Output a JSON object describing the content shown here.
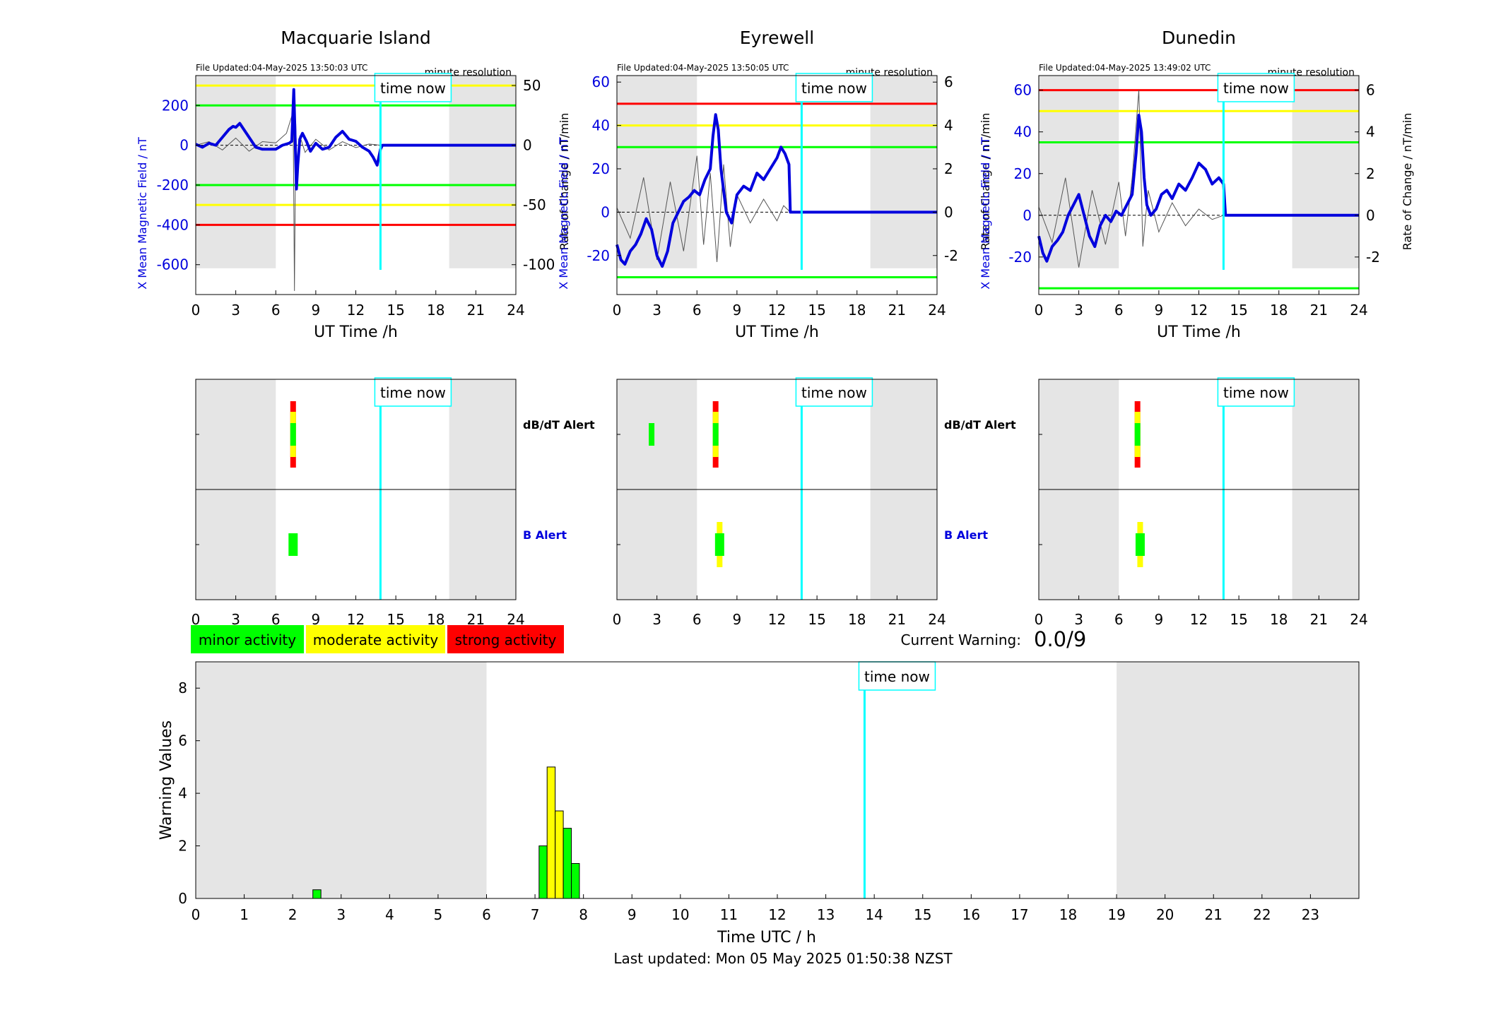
{
  "figure": {
    "time_now_label": "time now",
    "current_warning_label": "Current Warning:",
    "current_warning_value": "0.0/9",
    "last_updated": "Last updated: Mon 05 May 2025 01:50:38 NZST",
    "legend": [
      {
        "label": "minor activity",
        "color": "#00ff00"
      },
      {
        "label": "moderate activity",
        "color": "#ffff00"
      },
      {
        "label": "strong activity",
        "color": "#ff0000"
      }
    ],
    "colors": {
      "field": "#0000dd",
      "now_line": "#00ffff",
      "shade": "#e5e5e5",
      "green": "#00ff00",
      "yellow": "#ffff00",
      "red": "#ff0000"
    },
    "alert_rows": {
      "dbdt": "dB/dT Alert",
      "b": "B Alert"
    }
  },
  "chart_data": [
    {
      "type": "line",
      "title": "Macquarie Island",
      "file_updated": "File Updated:04-May-2025 13:50:03 UTC",
      "resolution": "minute resolution",
      "xlabel": "UT Time /h",
      "ylabel_left": "X Mean Magnetic Field / nT",
      "ylabel_right": "Rate of Change / nT/min",
      "xlim": [
        0,
        24
      ],
      "x_ticks": [
        0,
        3,
        6,
        9,
        12,
        15,
        18,
        21,
        24
      ],
      "ylim_left": [
        -750,
        350
      ],
      "y_ticks_left": [
        200,
        0,
        -200,
        -400,
        -600
      ],
      "ylim_right": [
        -125,
        58.3
      ],
      "y_ticks_right": [
        50,
        0,
        -50,
        -100
      ],
      "night_shading": [
        [
          0,
          6
        ],
        [
          19,
          24
        ]
      ],
      "time_now": 13.85,
      "thresholds": [
        {
          "value": 300,
          "color": "yellow"
        },
        {
          "value": 200,
          "color": "green"
        },
        {
          "value": -200,
          "color": "green"
        },
        {
          "value": -300,
          "color": "yellow"
        },
        {
          "value": -400,
          "color": "red"
        }
      ],
      "field_series": {
        "x": [
          0,
          0.5,
          1,
          1.5,
          2,
          2.5,
          2.8,
          3,
          3.3,
          3.6,
          4,
          4.5,
          5,
          5.5,
          6,
          6.5,
          7,
          7.2,
          7.35,
          7.45,
          7.55,
          7.65,
          7.8,
          8,
          8.3,
          8.6,
          9,
          9.5,
          10,
          10.5,
          11,
          11.5,
          12,
          12.5,
          13,
          13.3,
          13.6,
          13.85,
          14,
          24
        ],
        "y": [
          5,
          -10,
          10,
          0,
          40,
          80,
          95,
          90,
          110,
          80,
          40,
          -10,
          -20,
          -20,
          -20,
          0,
          10,
          20,
          280,
          40,
          -220,
          -100,
          30,
          60,
          20,
          -30,
          10,
          -20,
          -10,
          40,
          70,
          30,
          20,
          -10,
          -30,
          -60,
          -100,
          -20,
          0,
          0
        ]
      },
      "rate_series": {
        "x": [
          0,
          1,
          2,
          3,
          4,
          5,
          6,
          6.8,
          7.3,
          7.4,
          7.5,
          7.6,
          7.8,
          8.2,
          9,
          10,
          11,
          12,
          13,
          13.85
        ],
        "y": [
          0,
          3,
          -4,
          6,
          -5,
          3,
          2,
          10,
          28,
          -122,
          18,
          -30,
          8,
          -6,
          5,
          -4,
          3,
          -2,
          1,
          0
        ]
      }
    },
    {
      "type": "line",
      "title": "Eyrewell",
      "file_updated": "File Updated:04-May-2025 13:50:05 UTC",
      "resolution": "minute resolution",
      "xlabel": "UT Time /h",
      "ylabel_left": "X Mean Magnetic Field / nT",
      "ylabel_right": "Rate of Change / nT/min",
      "xlim": [
        0,
        24
      ],
      "x_ticks": [
        0,
        3,
        6,
        9,
        12,
        15,
        18,
        21,
        24
      ],
      "ylim_left": [
        -38,
        63
      ],
      "y_ticks_left": [
        60,
        40,
        20,
        0,
        -20
      ],
      "ylim_right": [
        -3.8,
        6.3
      ],
      "y_ticks_right": [
        6,
        4,
        2,
        0,
        -2
      ],
      "night_shading": [
        [
          0,
          6
        ],
        [
          19,
          24
        ]
      ],
      "time_now": 13.85,
      "thresholds": [
        {
          "value": 50,
          "color": "red"
        },
        {
          "value": 40,
          "color": "yellow"
        },
        {
          "value": 30,
          "color": "green"
        },
        {
          "value": -30,
          "color": "green"
        }
      ],
      "field_series": {
        "x": [
          0,
          0.3,
          0.6,
          1,
          1.4,
          1.8,
          2.2,
          2.6,
          3,
          3.4,
          3.8,
          4.2,
          4.6,
          5,
          5.4,
          5.8,
          6.2,
          6.6,
          7,
          7.2,
          7.4,
          7.6,
          7.8,
          8,
          8.2,
          8.6,
          9,
          9.5,
          10,
          10.5,
          11,
          11.5,
          12,
          12.3,
          12.6,
          12.9,
          13,
          24
        ],
        "y": [
          -15,
          -22,
          -24,
          -18,
          -15,
          -10,
          -3,
          -8,
          -20,
          -25,
          -18,
          -5,
          0,
          5,
          7,
          10,
          8,
          15,
          20,
          35,
          45,
          38,
          20,
          10,
          0,
          -5,
          8,
          12,
          10,
          18,
          15,
          20,
          25,
          30,
          27,
          22,
          0,
          0
        ]
      },
      "rate_series": {
        "x": [
          0,
          1,
          2,
          3,
          4,
          5,
          6,
          6.5,
          7,
          7.5,
          8,
          8.5,
          9,
          10,
          11,
          12,
          12.5,
          13
        ],
        "y": [
          0.2,
          -1.2,
          1.6,
          -2.2,
          1.4,
          -1.8,
          2.6,
          -1.5,
          1.8,
          -2.3,
          2.2,
          -1.6,
          0.8,
          -0.5,
          0.6,
          -0.4,
          0.3,
          0
        ]
      }
    },
    {
      "type": "line",
      "title": "Dunedin",
      "file_updated": "File Updated:04-May-2025 13:49:02 UTC",
      "resolution": "minute resolution",
      "xlabel": "UT Time /h",
      "ylabel_left": "X Mean Magnetic Field / nT",
      "ylabel_right": "Rate of Change / nT/min",
      "xlim": [
        0,
        24
      ],
      "x_ticks": [
        0,
        3,
        6,
        9,
        12,
        15,
        18,
        21,
        24
      ],
      "ylim_left": [
        -38,
        67
      ],
      "y_ticks_left": [
        60,
        40,
        20,
        0,
        -20
      ],
      "ylim_right": [
        -3.8,
        6.7
      ],
      "y_ticks_right": [
        6,
        4,
        2,
        0,
        -2
      ],
      "night_shading": [
        [
          0,
          6
        ],
        [
          19,
          24
        ]
      ],
      "time_now": 13.85,
      "thresholds": [
        {
          "value": 60,
          "color": "red"
        },
        {
          "value": 50,
          "color": "yellow"
        },
        {
          "value": 35,
          "color": "green"
        },
        {
          "value": -35,
          "color": "green"
        }
      ],
      "field_series": {
        "x": [
          0,
          0.3,
          0.6,
          1,
          1.4,
          1.8,
          2.2,
          2.6,
          3,
          3.4,
          3.8,
          4.2,
          4.6,
          5,
          5.4,
          5.8,
          6.2,
          6.6,
          7,
          7.3,
          7.5,
          7.7,
          7.9,
          8.1,
          8.4,
          8.8,
          9.2,
          9.6,
          10,
          10.5,
          11,
          11.5,
          12,
          12.5,
          13,
          13.5,
          13.85,
          14,
          24
        ],
        "y": [
          -10,
          -18,
          -22,
          -15,
          -12,
          -8,
          0,
          5,
          10,
          0,
          -10,
          -15,
          -5,
          0,
          -3,
          2,
          0,
          5,
          10,
          30,
          48,
          40,
          18,
          5,
          0,
          3,
          10,
          12,
          8,
          15,
          12,
          18,
          25,
          22,
          15,
          18,
          15,
          0,
          0
        ]
      },
      "rate_series": {
        "x": [
          0,
          1,
          2,
          3,
          4,
          5,
          6,
          6.5,
          7,
          7.5,
          7.8,
          8.2,
          9,
          10,
          11,
          12,
          13,
          13.85
        ],
        "y": [
          0.4,
          -1.3,
          1.8,
          -2.5,
          1.2,
          -1.4,
          1.6,
          -1.0,
          1.8,
          6.0,
          -1.5,
          1.2,
          -0.8,
          0.6,
          -0.5,
          0.3,
          -0.2,
          0
        ]
      }
    },
    {
      "type": "heatmap",
      "station": "Macquarie Island",
      "xlim": [
        0,
        24
      ],
      "x_ticks": [
        0,
        3,
        6,
        9,
        12,
        15,
        18,
        21,
        24
      ],
      "night_shading": [
        [
          0,
          6
        ],
        [
          19,
          24
        ]
      ],
      "time_now": 13.85,
      "dbdt_alerts": [
        {
          "x": 7.3,
          "level": "red"
        },
        {
          "x": 7.3,
          "level": "yellow"
        },
        {
          "x": 7.3,
          "level": "green"
        }
      ],
      "b_alerts": [
        {
          "x": 7.3,
          "level": "green"
        }
      ]
    },
    {
      "type": "heatmap",
      "station": "Eyrewell",
      "xlim": [
        0,
        24
      ],
      "x_ticks": [
        0,
        3,
        6,
        9,
        12,
        15,
        18,
        21,
        24
      ],
      "night_shading": [
        [
          0,
          6
        ],
        [
          19,
          24
        ]
      ],
      "time_now": 13.85,
      "dbdt_alerts": [
        {
          "x": 2.6,
          "level": "green"
        },
        {
          "x": 7.4,
          "level": "red"
        },
        {
          "x": 7.4,
          "level": "yellow"
        },
        {
          "x": 7.4,
          "level": "green"
        }
      ],
      "b_alerts": [
        {
          "x": 7.7,
          "level": "yellow"
        },
        {
          "x": 7.7,
          "level": "green"
        }
      ]
    },
    {
      "type": "heatmap",
      "station": "Dunedin",
      "xlim": [
        0,
        24
      ],
      "x_ticks": [
        0,
        3,
        6,
        9,
        12,
        15,
        18,
        21,
        24
      ],
      "night_shading": [
        [
          0,
          6
        ],
        [
          19,
          24
        ]
      ],
      "time_now": 13.85,
      "dbdt_alerts": [
        {
          "x": 7.4,
          "level": "red"
        },
        {
          "x": 7.4,
          "level": "yellow"
        },
        {
          "x": 7.4,
          "level": "green"
        }
      ],
      "b_alerts": [
        {
          "x": 7.6,
          "level": "yellow"
        },
        {
          "x": 7.6,
          "level": "green"
        }
      ]
    },
    {
      "type": "bar",
      "xlabel": "Time UTC / h",
      "ylabel": "Warning Values",
      "xlim": [
        0,
        24
      ],
      "x_ticks": [
        0,
        1,
        2,
        3,
        4,
        5,
        6,
        7,
        8,
        9,
        10,
        11,
        12,
        13,
        14,
        15,
        16,
        17,
        18,
        19,
        20,
        21,
        22,
        23
      ],
      "ylim": [
        0,
        9
      ],
      "y_ticks": [
        0,
        2,
        4,
        6,
        8
      ],
      "night_shading": [
        [
          0,
          6
        ],
        [
          19,
          24
        ]
      ],
      "time_now": 13.8,
      "bar_width": 0.1667,
      "bars": [
        {
          "x": 2.5,
          "value": 0.33,
          "level": "green"
        },
        {
          "x": 7.167,
          "value": 2.0,
          "level": "green"
        },
        {
          "x": 7.333,
          "value": 5.0,
          "level": "yellow"
        },
        {
          "x": 7.5,
          "value": 3.33,
          "level": "yellow"
        },
        {
          "x": 7.667,
          "value": 2.67,
          "level": "green"
        },
        {
          "x": 7.833,
          "value": 1.33,
          "level": "green"
        }
      ]
    }
  ]
}
